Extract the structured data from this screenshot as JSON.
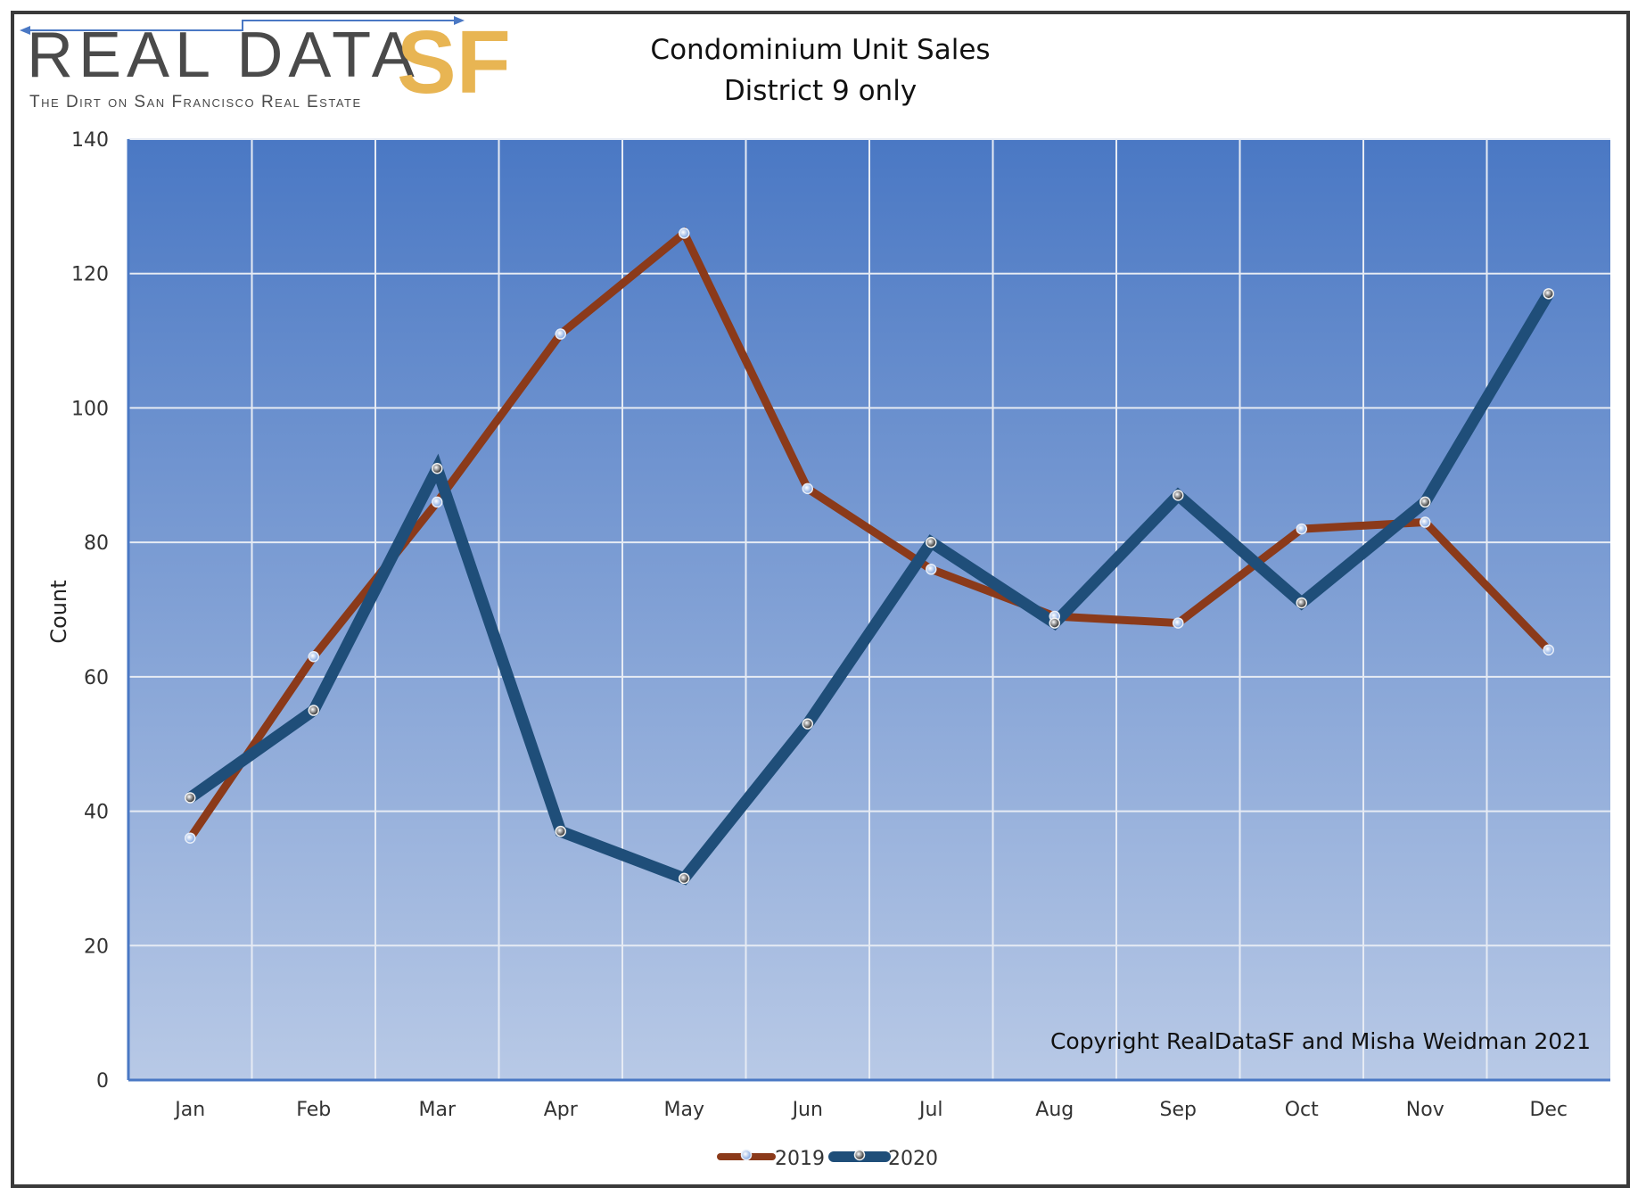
{
  "logo": {
    "main": "REAL DATA",
    "sf": "SF",
    "tagline": "The Dirt on San Francisco Real Estate"
  },
  "colors": {
    "series_2019": "#8b3a1a",
    "series_2020": "#1f4e79",
    "plot_top": "#4a78c4",
    "plot_bottom": "#b8c9e6",
    "logo_sf": "#e8b553",
    "logo_arrow": "#4a78c4"
  },
  "chart_data": {
    "type": "line",
    "title": "Condominium  Unit Sales",
    "subtitle": "District 9 only",
    "xlabel": "",
    "ylabel": "Count",
    "categories": [
      "Jan",
      "Feb",
      "Mar",
      "Apr",
      "May",
      "Jun",
      "Jul",
      "Aug",
      "Sep",
      "Oct",
      "Nov",
      "Dec"
    ],
    "series": [
      {
        "name": "2019",
        "values": [
          36,
          63,
          86,
          111,
          126,
          88,
          76,
          69,
          68,
          82,
          83,
          64
        ]
      },
      {
        "name": "2020",
        "values": [
          42,
          55,
          91,
          37,
          30,
          53,
          80,
          68,
          87,
          71,
          86,
          117
        ]
      }
    ],
    "ylim": [
      0,
      140
    ],
    "yticks": [
      0,
      20,
      40,
      60,
      80,
      100,
      120,
      140
    ],
    "grid": true,
    "legend_position": "bottom-center",
    "annotation": "Copyright RealDataSF and Misha Weidman 2021"
  }
}
